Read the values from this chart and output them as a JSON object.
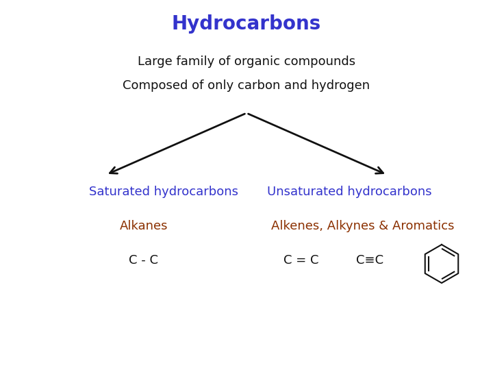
{
  "title": "Hydrocarbons",
  "title_color": "#3333CC",
  "title_fontsize": 20,
  "subtitle1": "Large family of organic compounds",
  "subtitle2": "Composed of only carbon and hydrogen",
  "subtitle_color": "#111111",
  "subtitle_fontsize": 13,
  "sat_label": "Saturated hydrocarbons",
  "unsat_label": "Unsaturated hydrocarbons",
  "branch_color": "#3333CC",
  "branch_fontsize": 13,
  "alkanes_label": "Alkanes",
  "alkenes_label": "Alkenes, Alkynes & Aromatics",
  "sub_color": "#8B3000",
  "sub_fontsize": 13,
  "cc_single": "C - C",
  "cc_double": "C = C",
  "cc_triple": "C≡C",
  "formula_color": "#111111",
  "formula_fontsize": 13,
  "background_color": "#FFFFFF",
  "arrow_color": "#111111"
}
